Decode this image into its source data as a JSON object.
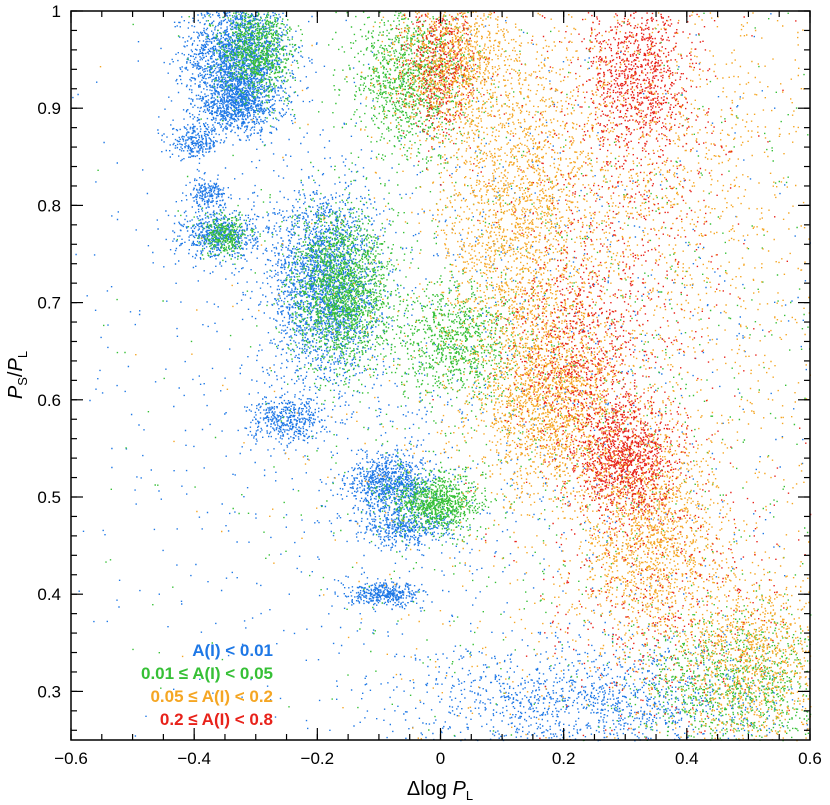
{
  "chart_data": {
    "type": "scatter",
    "title": "",
    "xlabel": {
      "prefix": "Δlog ",
      "var": "P",
      "sub": "L"
    },
    "ylabel": {
      "num": "P",
      "num_sub": "S",
      "den": "P",
      "den_sub": "L"
    },
    "xlim": [
      -0.6,
      0.6
    ],
    "ylim": [
      0.25,
      1.0
    ],
    "xticks": [
      -0.6,
      -0.4,
      -0.2,
      0,
      0.2,
      0.4,
      0.6
    ],
    "xtick_labels": [
      "−0.6",
      "−0.4",
      "−0.2",
      "0",
      "0.2",
      "0.4",
      "0.6"
    ],
    "yticks": [
      0.3,
      0.4,
      0.5,
      0.6,
      0.7,
      0.8,
      0.9,
      1.0
    ],
    "ytick_labels": [
      "0.3",
      "0.4",
      "0.5",
      "0.6",
      "0.7",
      "0.8",
      "0.9",
      "1"
    ],
    "grid": false,
    "legend_position": "bottom-left",
    "series": [
      {
        "name": "A(I) < 0.01",
        "color": "#1e78e6",
        "clusters": [
          {
            "x": -0.33,
            "y": 0.955,
            "sx": 0.04,
            "sy": 0.03,
            "n": 2000
          },
          {
            "x": -0.33,
            "y": 0.905,
            "sx": 0.035,
            "sy": 0.015,
            "n": 900
          },
          {
            "x": -0.4,
            "y": 0.865,
            "sx": 0.02,
            "sy": 0.008,
            "n": 250
          },
          {
            "x": -0.38,
            "y": 0.812,
            "sx": 0.015,
            "sy": 0.008,
            "n": 200
          },
          {
            "x": -0.36,
            "y": 0.77,
            "sx": 0.03,
            "sy": 0.012,
            "n": 600
          },
          {
            "x": -0.19,
            "y": 0.72,
            "sx": 0.045,
            "sy": 0.05,
            "n": 2400
          },
          {
            "x": -0.25,
            "y": 0.58,
            "sx": 0.03,
            "sy": 0.012,
            "n": 450
          },
          {
            "x": -0.08,
            "y": 0.515,
            "sx": 0.035,
            "sy": 0.015,
            "n": 900
          },
          {
            "x": -0.06,
            "y": 0.47,
            "sx": 0.04,
            "sy": 0.01,
            "n": 450
          },
          {
            "x": -0.09,
            "y": 0.4,
            "sx": 0.03,
            "sy": 0.006,
            "n": 400
          },
          {
            "x": 0.25,
            "y": 0.29,
            "sx": 0.15,
            "sy": 0.03,
            "n": 1400
          },
          {
            "x": 0.0,
            "y": 0.62,
            "sx": 0.35,
            "sy": 0.2,
            "n": 1500
          }
        ]
      },
      {
        "name": "0.01 ≤ A(I) < 0.05",
        "color": "#36c036",
        "clusters": [
          {
            "x": -0.3,
            "y": 0.96,
            "sx": 0.03,
            "sy": 0.025,
            "n": 900
          },
          {
            "x": -0.05,
            "y": 0.93,
            "sx": 0.05,
            "sy": 0.04,
            "n": 1200
          },
          {
            "x": -0.16,
            "y": 0.715,
            "sx": 0.04,
            "sy": 0.04,
            "n": 1800
          },
          {
            "x": -0.35,
            "y": 0.77,
            "sx": 0.02,
            "sy": 0.01,
            "n": 300
          },
          {
            "x": 0.02,
            "y": 0.66,
            "sx": 0.05,
            "sy": 0.03,
            "n": 900
          },
          {
            "x": -0.01,
            "y": 0.495,
            "sx": 0.035,
            "sy": 0.015,
            "n": 900
          },
          {
            "x": 0.48,
            "y": 0.3,
            "sx": 0.08,
            "sy": 0.04,
            "n": 1100
          },
          {
            "x": 0.2,
            "y": 0.62,
            "sx": 0.3,
            "sy": 0.2,
            "n": 1200
          }
        ]
      },
      {
        "name": "0.05 ≤ A(I) < 0.2",
        "color": "#f5a623",
        "clusters": [
          {
            "x": 0.02,
            "y": 0.95,
            "sx": 0.05,
            "sy": 0.04,
            "n": 1200
          },
          {
            "x": 0.12,
            "y": 0.78,
            "sx": 0.06,
            "sy": 0.08,
            "n": 1600
          },
          {
            "x": 0.18,
            "y": 0.6,
            "sx": 0.06,
            "sy": 0.05,
            "n": 1800
          },
          {
            "x": 0.34,
            "y": 0.46,
            "sx": 0.06,
            "sy": 0.06,
            "n": 1600
          },
          {
            "x": 0.5,
            "y": 0.33,
            "sx": 0.06,
            "sy": 0.05,
            "n": 1100
          },
          {
            "x": 0.3,
            "y": 0.85,
            "sx": 0.15,
            "sy": 0.1,
            "n": 1400
          },
          {
            "x": 0.3,
            "y": 0.6,
            "sx": 0.25,
            "sy": 0.25,
            "n": 1600
          }
        ]
      },
      {
        "name": "0.2 ≤ A(I) < 0.8",
        "color": "#e8221a",
        "clusters": [
          {
            "x": 0.32,
            "y": 0.94,
            "sx": 0.04,
            "sy": 0.04,
            "n": 900
          },
          {
            "x": 0.0,
            "y": 0.95,
            "sx": 0.03,
            "sy": 0.04,
            "n": 500
          },
          {
            "x": 0.3,
            "y": 0.54,
            "sx": 0.04,
            "sy": 0.03,
            "n": 1100
          },
          {
            "x": 0.22,
            "y": 0.64,
            "sx": 0.05,
            "sy": 0.05,
            "n": 700
          },
          {
            "x": 0.3,
            "y": 0.78,
            "sx": 0.1,
            "sy": 0.12,
            "n": 700
          },
          {
            "x": 0.35,
            "y": 0.4,
            "sx": 0.1,
            "sy": 0.08,
            "n": 500
          }
        ]
      }
    ]
  }
}
